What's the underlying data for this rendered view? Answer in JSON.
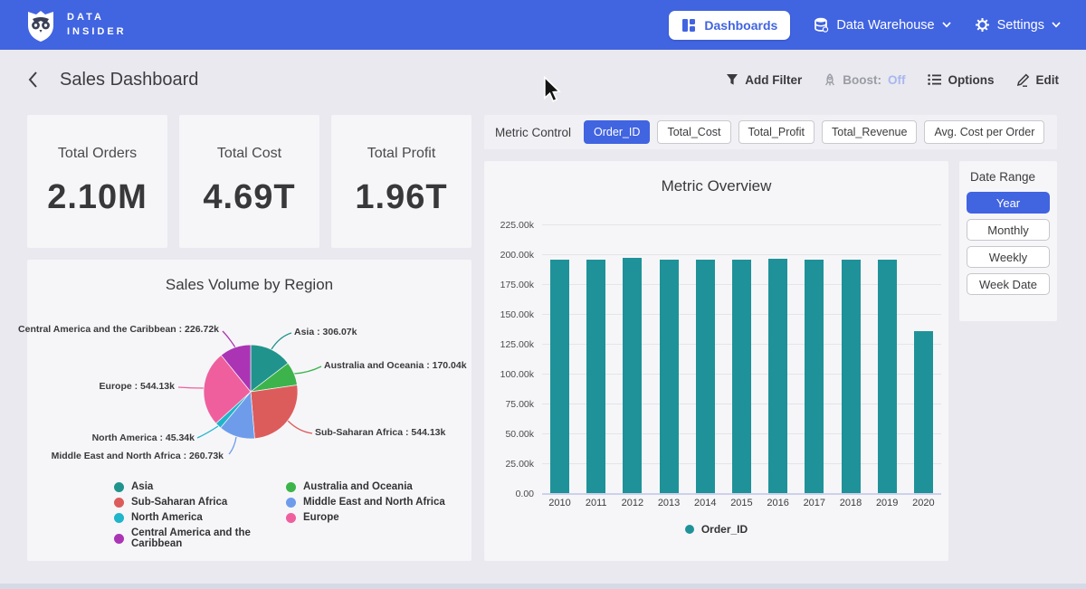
{
  "navbar": {
    "brand_line1": "DATA",
    "brand_line2": "INSIDER",
    "dashboards_label": "Dashboards",
    "data_warehouse_label": "Data Warehouse",
    "settings_label": "Settings"
  },
  "header": {
    "title": "Sales Dashboard",
    "add_filter_label": "Add Filter",
    "boost_label": "Boost:",
    "boost_state": "Off",
    "options_label": "Options",
    "edit_label": "Edit"
  },
  "kpis": [
    {
      "label": "Total Orders",
      "value": "2.10M"
    },
    {
      "label": "Total Cost",
      "value": "4.69T"
    },
    {
      "label": "Total Profit",
      "value": "1.96T"
    }
  ],
  "metric_control": {
    "label": "Metric Control",
    "buttons": [
      {
        "label": "Order_ID",
        "selected": true
      },
      {
        "label": "Total_Cost",
        "selected": false
      },
      {
        "label": "Total_Profit",
        "selected": false
      },
      {
        "label": "Total_Revenue",
        "selected": false
      },
      {
        "label": "Avg. Cost per Order",
        "selected": false
      }
    ]
  },
  "date_range": {
    "label": "Date Range",
    "buttons": [
      {
        "label": "Year",
        "selected": true
      },
      {
        "label": "Monthly",
        "selected": false
      },
      {
        "label": "Weekly",
        "selected": false
      },
      {
        "label": "Week Date",
        "selected": false
      }
    ]
  },
  "colors": {
    "accent_blue": "#4164e1",
    "boost_off": "#a9b6ef",
    "page_bg": "#e9e9ef",
    "card_bg": "#f6f6f8"
  },
  "chart_data": [
    {
      "type": "pie",
      "title": "Sales Volume by Region",
      "unit": "k",
      "direction": "clockwise",
      "start_angle": "top",
      "legend_position": "bottom",
      "slices": [
        {
          "label": "Asia",
          "value": 306.07,
          "callout": "Asia : 306.07k",
          "color": "#20948c"
        },
        {
          "label": "Australia and Oceania",
          "value": 170.04,
          "callout": "Australia and Oceania : 170.04k",
          "color": "#3cb44b"
        },
        {
          "label": "Sub-Saharan Africa",
          "value": 544.13,
          "callout": "Sub-Saharan Africa : 544.13k",
          "color": "#dc5c5c"
        },
        {
          "label": "Middle East and North Africa",
          "value": 260.73,
          "callout": "Middle East and North Africa : 260.73k",
          "color": "#6e9ceb"
        },
        {
          "label": "North America",
          "value": 45.34,
          "callout": "North America : 45.34k",
          "color": "#1fb5cb"
        },
        {
          "label": "Europe",
          "value": 544.13,
          "callout": "Europe : 544.13k",
          "color": "#ef5f9e"
        },
        {
          "label": "Central America and the Caribbean",
          "value": 226.72,
          "callout": "Central America and the Caribbean : 226.72k",
          "color": "#ab34b5"
        }
      ]
    },
    {
      "type": "bar",
      "title": "Metric Overview",
      "categories": [
        "2010",
        "2011",
        "2012",
        "2013",
        "2014",
        "2015",
        "2016",
        "2017",
        "2018",
        "2019",
        "2020"
      ],
      "series": [
        {
          "name": "Order_ID",
          "color": "#1f9299",
          "values": [
            195500,
            195400,
            196900,
            195200,
            195500,
            195500,
            196300,
            195700,
            195600,
            195800,
            135500
          ]
        }
      ],
      "ylim": [
        0,
        225000
      ],
      "y_ticks": [
        "225.00k",
        "200.00k",
        "175.00k",
        "150.00k",
        "125.00k",
        "100.00k",
        "75.00k",
        "50.00k",
        "25.00k",
        "0.00"
      ],
      "grid": true,
      "legend_position": "bottom"
    }
  ]
}
